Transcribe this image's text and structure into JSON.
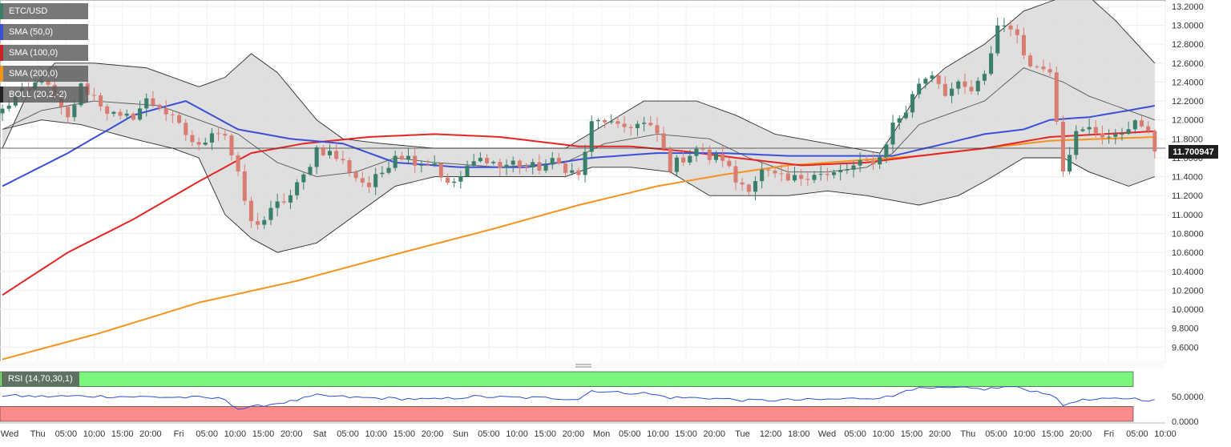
{
  "legend": {
    "items": [
      {
        "label": "ETC/USD",
        "color": "#3a7f6b",
        "icon": "candle-icon"
      },
      {
        "label": "SMA (50,0)",
        "color": "#3a4fd6"
      },
      {
        "label": "SMA (100,0)",
        "color": "#c92222"
      },
      {
        "label": "SMA (200,0)",
        "color": "#f0941a"
      },
      {
        "label": "BOLL (20,2,-2)",
        "color": "#222222"
      }
    ]
  },
  "rsi": {
    "label": "RSI (14,70,30,1)",
    "upper": 70,
    "lower": 30,
    "ticks": [
      "50.0000",
      "0.0000"
    ]
  },
  "price_badge": "11.700947",
  "colors": {
    "up": "#3a7f6b",
    "down": "#d97c72",
    "sma50": "#3a4fd6",
    "sma100": "#e52424",
    "sma200": "#f5931c",
    "band_fill": "#d9d9d9",
    "rsi_line": "#2f4fd6",
    "rsi_over": "#7cf57c",
    "rsi_under": "#fb8a8a"
  },
  "chart_data": {
    "type": "candlestick",
    "title": "ETC/USD",
    "ylim": [
      9.45,
      13.25
    ],
    "yticks": [
      "13.2000",
      "13.0000",
      "12.8000",
      "12.6000",
      "12.4000",
      "12.2000",
      "12.0000",
      "11.8000",
      "11.6000",
      "11.4000",
      "11.2000",
      "11.0000",
      "10.8000",
      "10.6000",
      "10.4000",
      "10.2000",
      "10.0000",
      "9.8000",
      "9.6000"
    ],
    "xticks": [
      "Wed",
      "Thu",
      "05:00",
      "10:00",
      "15:00",
      "20:00",
      "Fri",
      "05:00",
      "10:00",
      "15:00",
      "20:00",
      "Sat",
      "05:00",
      "10:00",
      "15:00",
      "20:00",
      "Sun",
      "05:00",
      "10:00",
      "15:00",
      "20:00",
      "Mon",
      "05:00",
      "10:00",
      "15:00",
      "20:00",
      "Tue",
      "12:00",
      "18:00",
      "Wed",
      "05:00",
      "10:00",
      "15:00",
      "20:00",
      "Thu",
      "05:00",
      "10:00",
      "15:00",
      "20:00",
      "Fri",
      "05:00",
      "10:00"
    ],
    "current_price": 11.700947,
    "anchors": {
      "close": [
        [
          0,
          12.1
        ],
        [
          2,
          12.25
        ],
        [
          4,
          12.3
        ],
        [
          6,
          12.45
        ],
        [
          8,
          12.2
        ],
        [
          10,
          12.0
        ],
        [
          12,
          12.35
        ],
        [
          14,
          12.25
        ],
        [
          16,
          12.1
        ],
        [
          18,
          12.0
        ],
        [
          20,
          12.05
        ],
        [
          22,
          12.2
        ],
        [
          24,
          12.15
        ],
        [
          26,
          12.0
        ],
        [
          28,
          11.85
        ],
        [
          30,
          11.7
        ],
        [
          32,
          11.9
        ],
        [
          34,
          11.85
        ],
        [
          36,
          11.4
        ],
        [
          38,
          10.9
        ],
        [
          40,
          10.95
        ],
        [
          42,
          11.1
        ],
        [
          44,
          11.2
        ],
        [
          46,
          11.4
        ],
        [
          48,
          11.7
        ],
        [
          50,
          11.65
        ],
        [
          52,
          11.55
        ],
        [
          54,
          11.4
        ],
        [
          56,
          11.3
        ],
        [
          58,
          11.45
        ],
        [
          60,
          11.65
        ],
        [
          62,
          11.6
        ],
        [
          64,
          11.55
        ],
        [
          66,
          11.55
        ],
        [
          68,
          11.3
        ],
        [
          70,
          11.4
        ],
        [
          72,
          11.55
        ],
        [
          74,
          11.6
        ],
        [
          76,
          11.5
        ],
        [
          78,
          11.55
        ],
        [
          80,
          11.5
        ],
        [
          82,
          11.5
        ],
        [
          84,
          11.55
        ],
        [
          86,
          11.5
        ],
        [
          88,
          11.4
        ],
        [
          90,
          11.95
        ],
        [
          92,
          12.0
        ],
        [
          94,
          11.9
        ],
        [
          96,
          11.95
        ],
        [
          98,
          11.95
        ],
        [
          100,
          11.85
        ],
        [
          102,
          11.5
        ],
        [
          104,
          11.6
        ],
        [
          106,
          11.7
        ],
        [
          108,
          11.6
        ],
        [
          110,
          11.6
        ],
        [
          112,
          11.35
        ],
        [
          114,
          11.3
        ],
        [
          116,
          11.45
        ],
        [
          118,
          11.4
        ],
        [
          120,
          11.35
        ],
        [
          122,
          11.4
        ],
        [
          124,
          11.45
        ],
        [
          126,
          11.4
        ],
        [
          128,
          11.45
        ],
        [
          130,
          11.5
        ],
        [
          132,
          11.55
        ],
        [
          134,
          11.6
        ],
        [
          136,
          11.95
        ],
        [
          138,
          12.1
        ],
        [
          140,
          12.4
        ],
        [
          142,
          12.5
        ],
        [
          144,
          12.3
        ],
        [
          146,
          12.35
        ],
        [
          148,
          12.3
        ],
        [
          150,
          12.45
        ],
        [
          152,
          13.0
        ],
        [
          154,
          13.0
        ],
        [
          156,
          12.7
        ],
        [
          158,
          12.55
        ],
        [
          160,
          12.55
        ],
        [
          162,
          11.5
        ],
        [
          164,
          11.85
        ],
        [
          166,
          11.9
        ],
        [
          168,
          11.85
        ],
        [
          170,
          11.8
        ],
        [
          172,
          11.95
        ],
        [
          174,
          11.95
        ],
        [
          176,
          11.7
        ]
      ],
      "sma50": [
        [
          0,
          11.3
        ],
        [
          10,
          11.65
        ],
        [
          20,
          12.05
        ],
        [
          28,
          12.2
        ],
        [
          36,
          11.9
        ],
        [
          44,
          11.8
        ],
        [
          52,
          11.75
        ],
        [
          60,
          11.55
        ],
        [
          70,
          11.5
        ],
        [
          80,
          11.5
        ],
        [
          90,
          11.6
        ],
        [
          100,
          11.65
        ],
        [
          110,
          11.65
        ],
        [
          120,
          11.62
        ],
        [
          130,
          11.62
        ],
        [
          136,
          11.62
        ],
        [
          144,
          11.75
        ],
        [
          150,
          11.85
        ],
        [
          156,
          11.9
        ],
        [
          160,
          12.0
        ],
        [
          166,
          12.03
        ],
        [
          172,
          12.1
        ],
        [
          176,
          12.15
        ]
      ],
      "sma100": [
        [
          0,
          10.15
        ],
        [
          10,
          10.6
        ],
        [
          20,
          10.95
        ],
        [
          30,
          11.35
        ],
        [
          38,
          11.65
        ],
        [
          46,
          11.75
        ],
        [
          56,
          11.82
        ],
        [
          66,
          11.85
        ],
        [
          76,
          11.82
        ],
        [
          88,
          11.72
        ],
        [
          96,
          11.72
        ],
        [
          104,
          11.67
        ],
        [
          112,
          11.6
        ],
        [
          122,
          11.52
        ],
        [
          132,
          11.55
        ],
        [
          140,
          11.62
        ],
        [
          150,
          11.7
        ],
        [
          160,
          11.82
        ],
        [
          168,
          11.85
        ],
        [
          176,
          11.88
        ]
      ],
      "sma200": [
        [
          0,
          9.47
        ],
        [
          15,
          9.75
        ],
        [
          30,
          10.07
        ],
        [
          45,
          10.3
        ],
        [
          60,
          10.58
        ],
        [
          75,
          10.85
        ],
        [
          88,
          11.1
        ],
        [
          100,
          11.3
        ],
        [
          110,
          11.42
        ],
        [
          120,
          11.52
        ],
        [
          130,
          11.57
        ],
        [
          140,
          11.62
        ],
        [
          150,
          11.7
        ],
        [
          160,
          11.78
        ],
        [
          168,
          11.8
        ],
        [
          176,
          11.82
        ]
      ],
      "boll_upper": [
        [
          0,
          11.7
        ],
        [
          4,
          12.3
        ],
        [
          8,
          12.6
        ],
        [
          14,
          12.6
        ],
        [
          22,
          12.55
        ],
        [
          30,
          12.35
        ],
        [
          34,
          12.45
        ],
        [
          38,
          12.7
        ],
        [
          42,
          12.5
        ],
        [
          48,
          12.0
        ],
        [
          52,
          11.8
        ],
        [
          58,
          11.75
        ],
        [
          66,
          11.7
        ],
        [
          76,
          11.7
        ],
        [
          86,
          11.7
        ],
        [
          92,
          11.95
        ],
        [
          98,
          12.2
        ],
        [
          106,
          12.2
        ],
        [
          112,
          12.05
        ],
        [
          118,
          11.85
        ],
        [
          126,
          11.75
        ],
        [
          134,
          11.65
        ],
        [
          136,
          11.85
        ],
        [
          140,
          12.3
        ],
        [
          144,
          12.55
        ],
        [
          150,
          12.8
        ],
        [
          156,
          13.15
        ],
        [
          162,
          13.3
        ],
        [
          166,
          13.3
        ],
        [
          170,
          13.05
        ],
        [
          176,
          12.6
        ]
      ],
      "boll_mid": [
        [
          0,
          11.9
        ],
        [
          6,
          12.1
        ],
        [
          14,
          12.2
        ],
        [
          24,
          12.15
        ],
        [
          30,
          12.0
        ],
        [
          36,
          11.85
        ],
        [
          42,
          11.55
        ],
        [
          48,
          11.4
        ],
        [
          54,
          11.45
        ],
        [
          60,
          11.6
        ],
        [
          66,
          11.55
        ],
        [
          76,
          11.5
        ],
        [
          86,
          11.55
        ],
        [
          92,
          11.75
        ],
        [
          100,
          11.85
        ],
        [
          108,
          11.8
        ],
        [
          114,
          11.6
        ],
        [
          120,
          11.45
        ],
        [
          126,
          11.45
        ],
        [
          132,
          11.5
        ],
        [
          136,
          11.65
        ],
        [
          140,
          11.95
        ],
        [
          146,
          12.1
        ],
        [
          150,
          12.2
        ],
        [
          156,
          12.55
        ],
        [
          162,
          12.4
        ],
        [
          166,
          12.25
        ],
        [
          172,
          12.1
        ],
        [
          176,
          12.0
        ]
      ],
      "boll_lower": [
        [
          0,
          11.9
        ],
        [
          6,
          12.0
        ],
        [
          12,
          11.95
        ],
        [
          20,
          11.8
        ],
        [
          26,
          11.7
        ],
        [
          30,
          11.6
        ],
        [
          34,
          11.0
        ],
        [
          38,
          10.75
        ],
        [
          42,
          10.6
        ],
        [
          48,
          10.7
        ],
        [
          54,
          11.0
        ],
        [
          60,
          11.3
        ],
        [
          66,
          11.4
        ],
        [
          76,
          11.4
        ],
        [
          86,
          11.4
        ],
        [
          90,
          11.5
        ],
        [
          96,
          11.5
        ],
        [
          102,
          11.45
        ],
        [
          108,
          11.2
        ],
        [
          114,
          11.2
        ],
        [
          120,
          11.2
        ],
        [
          126,
          11.25
        ],
        [
          132,
          11.2
        ],
        [
          136,
          11.15
        ],
        [
          140,
          11.1
        ],
        [
          146,
          11.2
        ],
        [
          150,
          11.35
        ],
        [
          156,
          11.6
        ],
        [
          162,
          11.6
        ],
        [
          166,
          11.45
        ],
        [
          172,
          11.3
        ],
        [
          176,
          11.4
        ]
      ],
      "rsi": [
        [
          0,
          52
        ],
        [
          6,
          50
        ],
        [
          12,
          51
        ],
        [
          18,
          50
        ],
        [
          24,
          49
        ],
        [
          30,
          48
        ],
        [
          34,
          45
        ],
        [
          36,
          25
        ],
        [
          38,
          28
        ],
        [
          40,
          33
        ],
        [
          44,
          40
        ],
        [
          48,
          52
        ],
        [
          54,
          48
        ],
        [
          60,
          46
        ],
        [
          66,
          44
        ],
        [
          72,
          50
        ],
        [
          78,
          48
        ],
        [
          84,
          47
        ],
        [
          88,
          45
        ],
        [
          90,
          62
        ],
        [
          94,
          58
        ],
        [
          98,
          57
        ],
        [
          102,
          48
        ],
        [
          108,
          47
        ],
        [
          114,
          42
        ],
        [
          120,
          43
        ],
        [
          126,
          44
        ],
        [
          132,
          47
        ],
        [
          136,
          50
        ],
        [
          138,
          65
        ],
        [
          142,
          66
        ],
        [
          146,
          67
        ],
        [
          150,
          65
        ],
        [
          154,
          70
        ],
        [
          158,
          60
        ],
        [
          160,
          56
        ],
        [
          162,
          32
        ],
        [
          164,
          42
        ],
        [
          168,
          44
        ],
        [
          172,
          47
        ],
        [
          176,
          42
        ]
      ]
    }
  }
}
